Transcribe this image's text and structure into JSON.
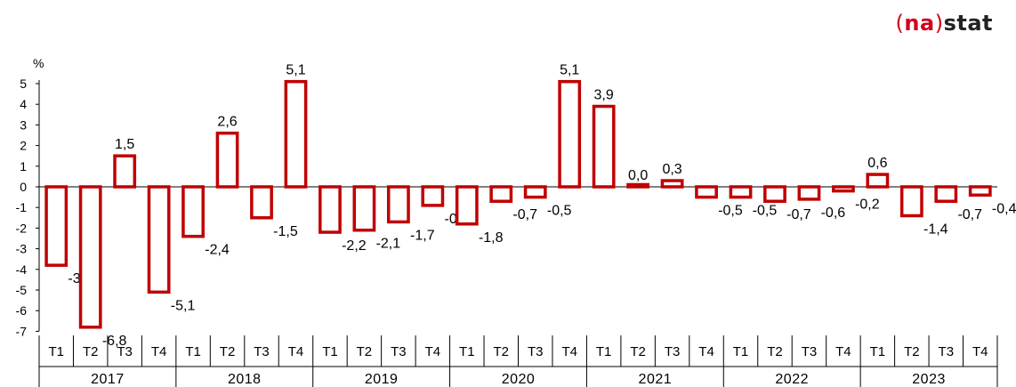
{
  "logo": {
    "open": "(",
    "na": "na",
    "close": ")",
    "stat": "stat"
  },
  "chart_data": {
    "type": "bar",
    "unit": "%",
    "ylim": [
      -7,
      5
    ],
    "yticks": [
      5,
      4,
      3,
      2,
      1,
      0,
      -1,
      -2,
      -3,
      -4,
      -5,
      -6,
      -7
    ],
    "quarters": [
      "T1",
      "T2",
      "T3",
      "T4",
      "T1",
      "T2",
      "T3",
      "T4",
      "T1",
      "T2",
      "T3",
      "T4",
      "T1",
      "T2",
      "T3",
      "T4",
      "T1",
      "T2",
      "T3",
      "T4",
      "T1",
      "T2",
      "T3",
      "T4",
      "T1",
      "T2",
      "T3",
      "T4"
    ],
    "years": [
      "2017",
      "2018",
      "2019",
      "2020",
      "2021",
      "2022",
      "2023"
    ],
    "values": [
      -3.8,
      -6.8,
      1.5,
      -5.1,
      -2.4,
      2.6,
      -1.5,
      5.1,
      -2.2,
      -2.1,
      -1.7,
      -0.9,
      -1.8,
      -0.7,
      -0.5,
      5.1,
      3.9,
      0.0,
      0.3,
      -0.5,
      -0.5,
      -0.7,
      -0.6,
      -0.2,
      0.6,
      -1.4,
      -0.7,
      -0.4
    ],
    "labels": [
      "-3,8",
      "-6,8",
      "1,5",
      "-5,1",
      "-2,4",
      "2,6",
      "-1,5",
      "5,1",
      "-2,2",
      "-2,1",
      "-1,7",
      "-0,9",
      "-1,8",
      "-0,7",
      "-0,5",
      "5,1",
      "3,9",
      "0,0",
      "0,3",
      "-0,5",
      "-0,5",
      "-0,7",
      "-0,6",
      "-0,2",
      "0,6",
      "-1,4",
      "-0,7",
      "-0,4"
    ],
    "bar_color": "#c00000",
    "grid": false
  }
}
